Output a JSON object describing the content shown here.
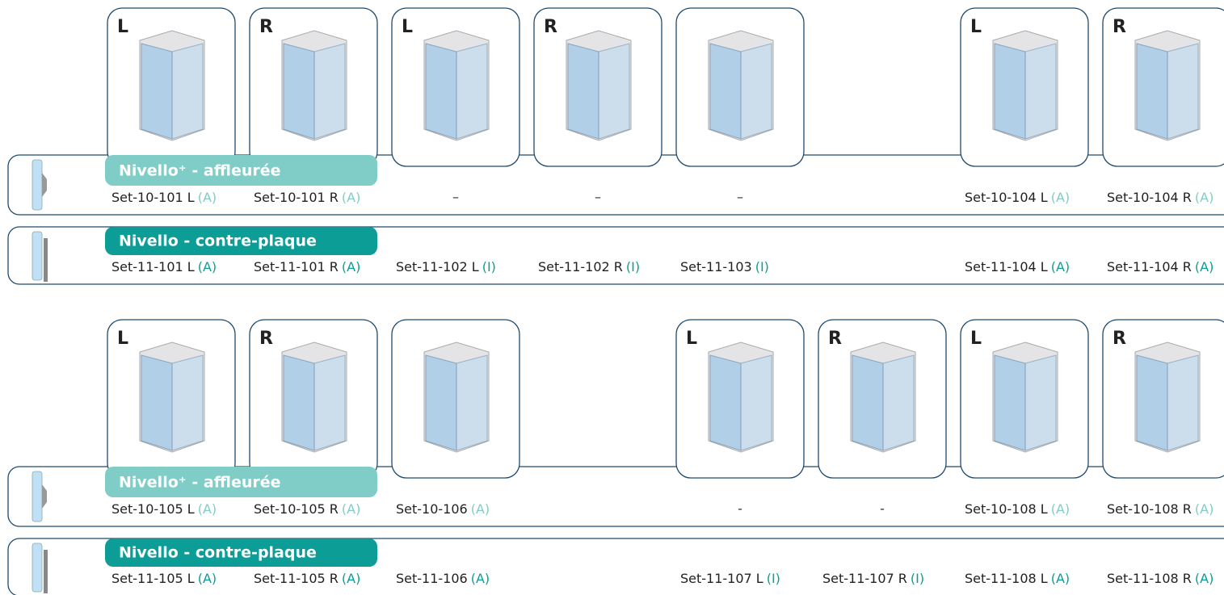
{
  "blocks": [
    {
      "cards": [
        "L",
        "R",
        "L",
        "R",
        null,
        "L",
        "R"
      ],
      "rows": [
        {
          "label": "Nivello⁺ - affleurée",
          "cells": [
            {
              "code": "Set-10-101 L",
              "tag": "(A)"
            },
            {
              "code": "Set-10-101 R",
              "tag": "(A)"
            },
            {
              "code": "–"
            },
            {
              "code": "–"
            },
            {
              "code": "–"
            },
            {
              "code": "Set-10-104 L",
              "tag": "(A)"
            },
            {
              "code": "Set-10-104 R",
              "tag": "(A)"
            }
          ]
        },
        {
          "label": "Nivello - contre-plaque",
          "cells": [
            {
              "code": "Set-11-101 L",
              "tag": "(A)"
            },
            {
              "code": "Set-11-101 R",
              "tag": "(A)"
            },
            {
              "code": "Set-11-102 L",
              "tag": "(I)"
            },
            {
              "code": "Set-11-102 R",
              "tag": "(I)"
            },
            {
              "code": "Set-11-103",
              "tag": "(I)"
            },
            {
              "code": "Set-11-104 L",
              "tag": "(A)"
            },
            {
              "code": "Set-11-104 R",
              "tag": "(A)"
            }
          ]
        }
      ]
    },
    {
      "cards": [
        "L",
        "R",
        null,
        "L",
        "R",
        "L",
        "R"
      ],
      "rows": [
        {
          "label": "Nivello⁺ - affleurée",
          "cells": [
            {
              "code": "Set-10-105 L",
              "tag": "(A)"
            },
            {
              "code": "Set-10-105 R",
              "tag": "(A)"
            },
            {
              "code": "Set-10-106",
              "tag": "(A)"
            },
            {
              "code": "-"
            },
            {
              "code": "-"
            },
            {
              "code": "Set-10-108 L",
              "tag": "(A)"
            },
            {
              "code": "Set-10-108 R",
              "tag": "(A)"
            }
          ]
        },
        {
          "label": "Nivello - contre-plaque",
          "cells": [
            {
              "code": "Set-11-105 L",
              "tag": "(A)"
            },
            {
              "code": "Set-11-105 R",
              "tag": "(A)"
            },
            {
              "code": "Set-11-106",
              "tag": "(A)"
            },
            {
              "code": "Set-11-107 L",
              "tag": "(I)"
            },
            {
              "code": "Set-11-107 R",
              "tag": "(I)"
            },
            {
              "code": "Set-11-108 L",
              "tag": "(A)"
            },
            {
              "code": "Set-11-108 R",
              "tag": "(A)"
            }
          ]
        }
      ]
    }
  ]
}
